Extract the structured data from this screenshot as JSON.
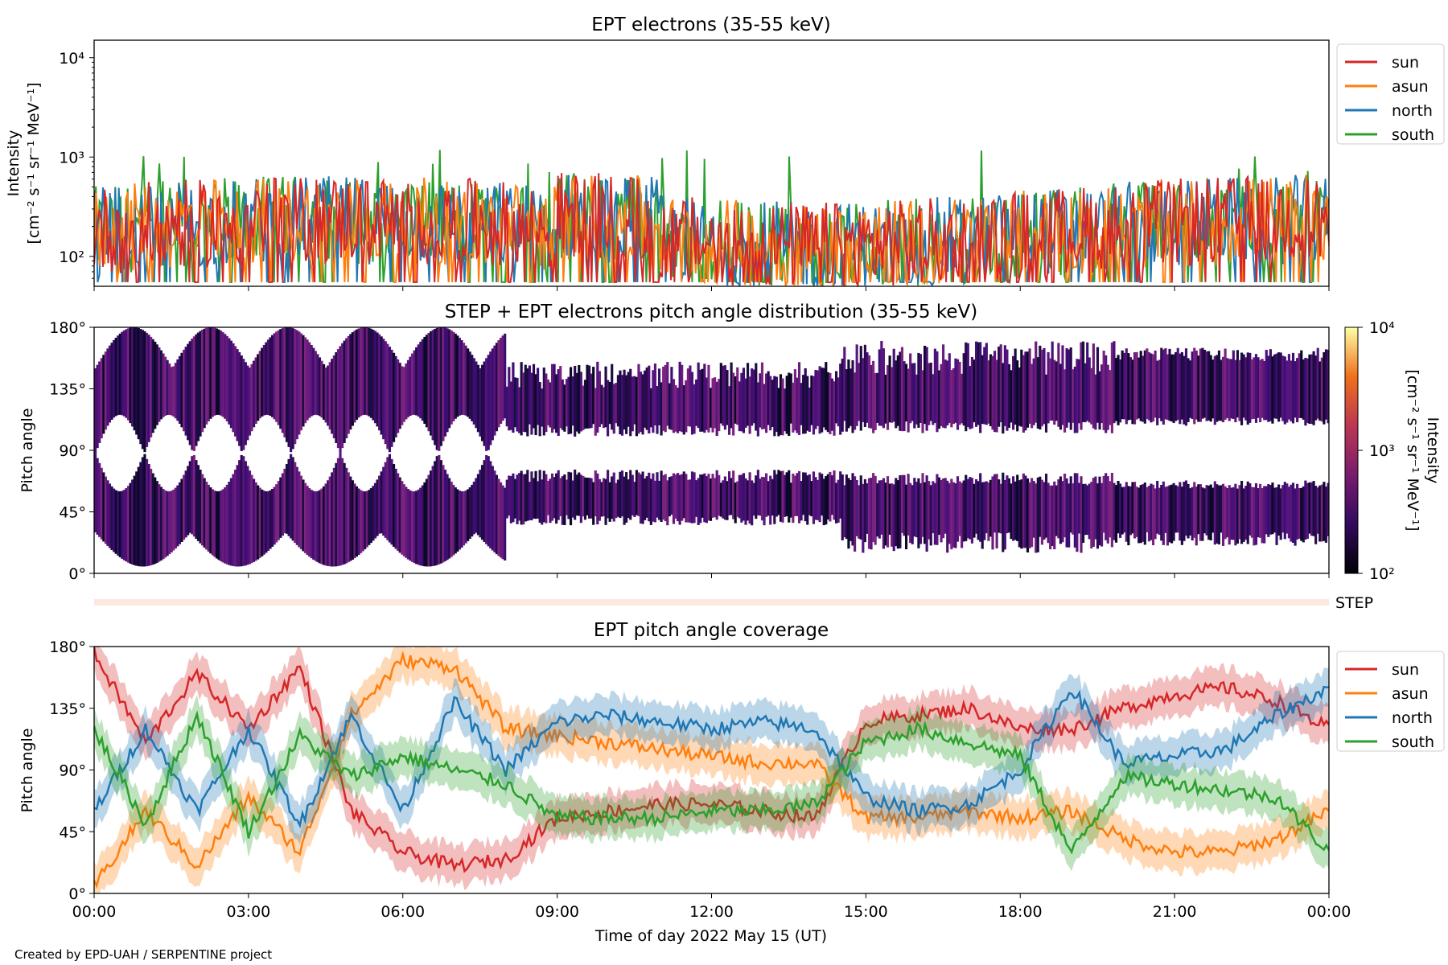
{
  "footer": "Created by EPD-UAH / SERPENTINE project",
  "colors": {
    "sun": "#d62728",
    "asun": "#ff7f0e",
    "north": "#1f77b4",
    "south": "#2ca02c"
  },
  "chart_data": [
    {
      "type": "line",
      "title": "EPT electrons (35-55 keV)",
      "ylabel": [
        "Intensity",
        "[cm⁻² s⁻¹ sr⁻¹ MeV⁻¹]"
      ],
      "yscale": "log",
      "ylim": [
        50,
        15000
      ],
      "yticks": [
        {
          "value": 100,
          "label": "10²"
        },
        {
          "value": 1000,
          "label": "10³"
        },
        {
          "value": 10000,
          "label": "10⁴"
        }
      ],
      "xlim": [
        "00:00",
        "24:00"
      ],
      "legend": {
        "placement": "outside-right-top",
        "entries": [
          "sun",
          "asun",
          "north",
          "south"
        ]
      },
      "series": [
        {
          "name": "sun",
          "approx_range": [
            50,
            900
          ]
        },
        {
          "name": "asun",
          "approx_range": [
            50,
            900
          ]
        },
        {
          "name": "north",
          "approx_range": [
            50,
            900
          ]
        },
        {
          "name": "south",
          "approx_range": [
            50,
            1200
          ]
        }
      ]
    },
    {
      "type": "heatmap",
      "title": "STEP + EPT electrons pitch angle distribution (35-55 keV)",
      "ylabel": "Pitch angle",
      "yticks": [
        "0°",
        "45°",
        "90°",
        "135°",
        "180°"
      ],
      "ylim": [
        0,
        180
      ],
      "colorbar": {
        "label": [
          "Intensity",
          "[cm⁻² s⁻¹ sr⁻¹ MeV⁻¹]"
        ],
        "scale": "log",
        "range": [
          100,
          10000
        ],
        "ticks": [
          "10²",
          "10³",
          "10⁴"
        ],
        "colormap": "inferno"
      }
    },
    {
      "type": "bar",
      "label": "STEP"
    },
    {
      "type": "line",
      "title": "EPT pitch angle coverage",
      "ylabel": "Pitch angle",
      "ylim": [
        0,
        180
      ],
      "yticks": [
        "0°",
        "45°",
        "90°",
        "135°",
        "180°"
      ],
      "xlabel": "Time of day 2022 May 15 (UT)",
      "xticks": [
        "00:00",
        "03:00",
        "06:00",
        "09:00",
        "12:00",
        "15:00",
        "18:00",
        "21:00",
        "00:00"
      ],
      "legend": {
        "placement": "outside-right-top",
        "entries": [
          "sun",
          "asun",
          "north",
          "south"
        ]
      },
      "series": [
        {
          "name": "sun",
          "x": [
            0,
            1,
            2,
            3,
            4,
            5,
            6,
            7,
            8,
            9,
            10,
            11,
            12,
            13,
            14,
            15,
            16,
            17,
            18,
            19,
            20,
            21,
            22,
            23,
            24
          ],
          "y": [
            175,
            110,
            160,
            120,
            165,
            60,
            30,
            20,
            25,
            55,
            60,
            65,
            65,
            60,
            55,
            125,
            130,
            135,
            120,
            120,
            135,
            145,
            150,
            140,
            120
          ]
        },
        {
          "name": "asun",
          "x": [
            0,
            1,
            2,
            3,
            4,
            5,
            6,
            7,
            8,
            9,
            10,
            11,
            12,
            13,
            14,
            15,
            16,
            17,
            18,
            19,
            20,
            21,
            22,
            23,
            24
          ],
          "y": [
            5,
            60,
            20,
            70,
            30,
            130,
            170,
            165,
            120,
            115,
            110,
            105,
            100,
            95,
            95,
            55,
            55,
            60,
            55,
            60,
            40,
            30,
            30,
            40,
            60
          ]
        },
        {
          "name": "north",
          "x": [
            0,
            1,
            2,
            3,
            4,
            5,
            6,
            7,
            8,
            9,
            10,
            11,
            12,
            13,
            14,
            15,
            16,
            17,
            18,
            19,
            20,
            21,
            22,
            23,
            24
          ],
          "y": [
            60,
            120,
            60,
            120,
            50,
            130,
            60,
            140,
            90,
            125,
            130,
            125,
            120,
            125,
            120,
            70,
            60,
            65,
            90,
            150,
            95,
            100,
            105,
            130,
            150
          ]
        },
        {
          "name": "south",
          "x": [
            0,
            1,
            2,
            3,
            4,
            5,
            6,
            7,
            8,
            9,
            10,
            11,
            12,
            13,
            14,
            15,
            16,
            17,
            18,
            19,
            20,
            21,
            22,
            23,
            24
          ],
          "y": [
            120,
            50,
            130,
            45,
            115,
            85,
            100,
            90,
            80,
            55,
            55,
            55,
            60,
            60,
            65,
            110,
            120,
            110,
            100,
            30,
            85,
            80,
            75,
            70,
            30
          ]
        }
      ]
    }
  ]
}
